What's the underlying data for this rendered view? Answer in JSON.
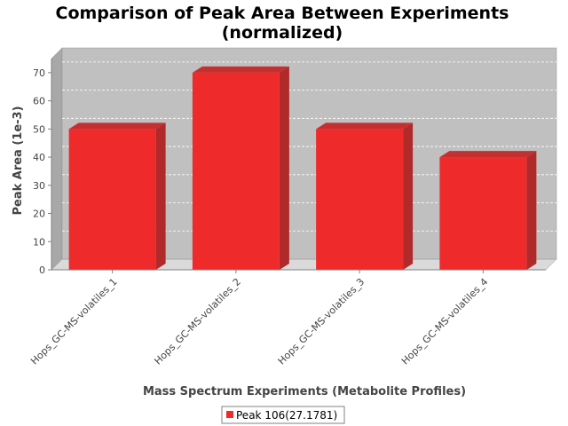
{
  "chart_data": {
    "type": "bar",
    "title_line1": "Comparison of Peak Area Between Experiments",
    "title_line2": "(normalized)",
    "xlabel": "Mass Spectrum Experiments (Metabolite Profiles)",
    "ylabel": "Peak Area (1e-3)",
    "categories": [
      "Hops_GC-MS-volatiles_1",
      "Hops_GC-MS-volatiles_2",
      "Hops_GC-MS-volatiles_3",
      "Hops_GC-MS-volatiles_4"
    ],
    "series": [
      {
        "name": "Peak 106(27.1781)",
        "values": [
          50,
          70,
          50,
          40
        ],
        "color": "#ee2a2a"
      }
    ],
    "ylim": [
      0,
      75
    ],
    "yticks": [
      0,
      10,
      20,
      30,
      40,
      50,
      60,
      70
    ],
    "grid": true,
    "legend_position": "bottom",
    "render": "3d"
  }
}
